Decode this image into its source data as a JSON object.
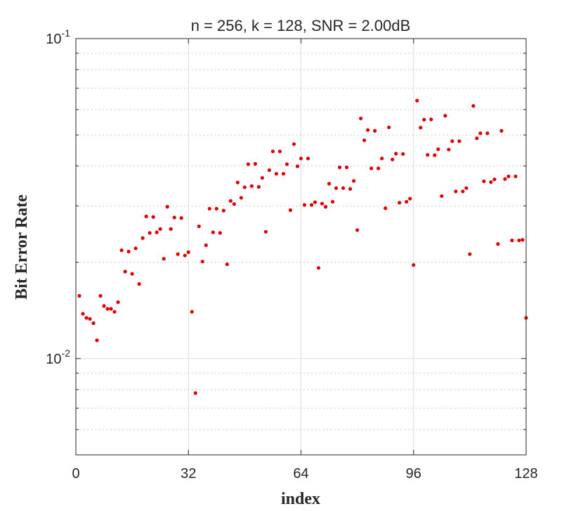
{
  "chart_data": {
    "type": "scatter",
    "title": "n = 256, k = 128, SNR = 2.00dB",
    "xlabel": "index",
    "ylabel": "Bit Error Rate",
    "xlim": [
      0,
      128
    ],
    "ylim": [
      0.005,
      0.1
    ],
    "yscale": "log",
    "xticks": [
      0,
      32,
      64,
      96,
      128
    ],
    "xtick_labels": [
      "0",
      "32",
      "64",
      "96",
      "128"
    ],
    "yticks": [
      {
        "value": 0.01,
        "base": "10",
        "exp": "-2"
      },
      {
        "value": 0.1,
        "base": "10",
        "exp": "-1"
      }
    ],
    "grid": true,
    "marker_color": "#e00000",
    "points": [
      [
        1,
        0.0157
      ],
      [
        2,
        0.0138
      ],
      [
        3,
        0.0134
      ],
      [
        4,
        0.0133
      ],
      [
        5,
        0.0129
      ],
      [
        6,
        0.0114
      ],
      [
        7,
        0.0157
      ],
      [
        8,
        0.0146
      ],
      [
        9,
        0.0143
      ],
      [
        10,
        0.0143
      ],
      [
        11,
        0.014
      ],
      [
        12,
        0.015
      ],
      [
        13,
        0.0218
      ],
      [
        14,
        0.0187
      ],
      [
        15,
        0.0216
      ],
      [
        16,
        0.0184
      ],
      [
        17,
        0.0221
      ],
      [
        18,
        0.0171
      ],
      [
        19,
        0.0238
      ],
      [
        20,
        0.0278
      ],
      [
        21,
        0.0247
      ],
      [
        22,
        0.0277
      ],
      [
        23,
        0.0248
      ],
      [
        24,
        0.0254
      ],
      [
        25,
        0.0205
      ],
      [
        26,
        0.0298
      ],
      [
        27,
        0.0254
      ],
      [
        28,
        0.0276
      ],
      [
        29,
        0.0212
      ],
      [
        30,
        0.0275
      ],
      [
        31,
        0.021
      ],
      [
        32,
        0.0215
      ],
      [
        33,
        0.014
      ],
      [
        34,
        0.0078
      ],
      [
        35,
        0.0259
      ],
      [
        36,
        0.0201
      ],
      [
        37,
        0.0226
      ],
      [
        38,
        0.0294
      ],
      [
        39,
        0.0248
      ],
      [
        40,
        0.0294
      ],
      [
        41,
        0.0247
      ],
      [
        42,
        0.029
      ],
      [
        43,
        0.0197
      ],
      [
        44,
        0.0311
      ],
      [
        45,
        0.0304
      ],
      [
        46,
        0.0355
      ],
      [
        47,
        0.0318
      ],
      [
        48,
        0.0343
      ],
      [
        49,
        0.0405
      ],
      [
        50,
        0.0346
      ],
      [
        51,
        0.0406
      ],
      [
        52,
        0.0344
      ],
      [
        53,
        0.0367
      ],
      [
        54,
        0.0249
      ],
      [
        55,
        0.0388
      ],
      [
        56,
        0.0444
      ],
      [
        57,
        0.0378
      ],
      [
        58,
        0.0444
      ],
      [
        59,
        0.0378
      ],
      [
        60,
        0.0405
      ],
      [
        61,
        0.0291
      ],
      [
        62,
        0.0468
      ],
      [
        63,
        0.0399
      ],
      [
        64,
        0.0422
      ],
      [
        65,
        0.0302
      ],
      [
        66,
        0.0422
      ],
      [
        67,
        0.0302
      ],
      [
        68,
        0.0308
      ],
      [
        69,
        0.0192
      ],
      [
        70,
        0.0305
      ],
      [
        71,
        0.0298
      ],
      [
        72,
        0.0352
      ],
      [
        73,
        0.0309
      ],
      [
        74,
        0.0341
      ],
      [
        75,
        0.0396
      ],
      [
        76,
        0.0341
      ],
      [
        77,
        0.0396
      ],
      [
        78,
        0.0339
      ],
      [
        79,
        0.0359
      ],
      [
        80,
        0.0252
      ],
      [
        81,
        0.0563
      ],
      [
        82,
        0.0481
      ],
      [
        83,
        0.0518
      ],
      [
        84,
        0.0393
      ],
      [
        85,
        0.0515
      ],
      [
        86,
        0.0393
      ],
      [
        87,
        0.0422
      ],
      [
        88,
        0.0295
      ],
      [
        89,
        0.0528
      ],
      [
        90,
        0.0419
      ],
      [
        91,
        0.0437
      ],
      [
        92,
        0.0307
      ],
      [
        93,
        0.0436
      ],
      [
        94,
        0.0309
      ],
      [
        95,
        0.0316
      ],
      [
        96,
        0.0196
      ],
      [
        97,
        0.064
      ],
      [
        98,
        0.0527
      ],
      [
        99,
        0.0558
      ],
      [
        100,
        0.0433
      ],
      [
        101,
        0.0559
      ],
      [
        102,
        0.0432
      ],
      [
        103,
        0.0451
      ],
      [
        104,
        0.0322
      ],
      [
        105,
        0.0574
      ],
      [
        106,
        0.045
      ],
      [
        107,
        0.0478
      ],
      [
        108,
        0.0333
      ],
      [
        109,
        0.0478
      ],
      [
        110,
        0.0333
      ],
      [
        111,
        0.0341
      ],
      [
        112,
        0.0212
      ],
      [
        113,
        0.0616
      ],
      [
        114,
        0.0488
      ],
      [
        115,
        0.0506
      ],
      [
        116,
        0.0358
      ],
      [
        117,
        0.0506
      ],
      [
        118,
        0.0356
      ],
      [
        119,
        0.0363
      ],
      [
        120,
        0.0228
      ],
      [
        121,
        0.0515
      ],
      [
        122,
        0.0364
      ],
      [
        123,
        0.0371
      ],
      [
        124,
        0.0234
      ],
      [
        125,
        0.0371
      ],
      [
        126,
        0.0234
      ],
      [
        127,
        0.0235
      ],
      [
        128,
        0.0134
      ]
    ]
  }
}
